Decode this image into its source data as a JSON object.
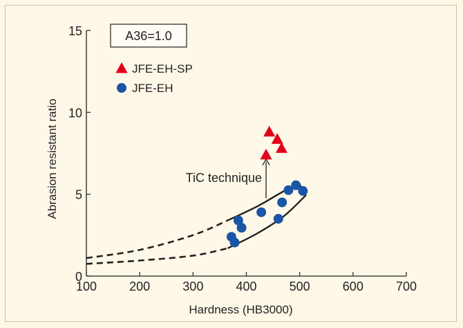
{
  "chart_data": {
    "type": "scatter",
    "xlabel": "Hardness (HB3000)",
    "ylabel": "Abrasion resistant ratio",
    "xlim": [
      100,
      700
    ],
    "ylim": [
      0,
      15
    ],
    "xticks": [
      "100",
      "200",
      "300",
      "400",
      "500",
      "600",
      "700"
    ],
    "yticks": [
      "0",
      "5",
      "10",
      "15"
    ],
    "grid": false,
    "legend_position": "top-left",
    "baseline_label": "A36=1.0",
    "annotation": "TiC technique",
    "colors": {
      "triangle": "#e3001b",
      "circle": "#1a55a6",
      "line": "#231f20",
      "arrow": "#231f20"
    },
    "series": [
      {
        "name": "JFE-EH-SP",
        "marker": "triangle",
        "points": [
          [
            443,
            8.8
          ],
          [
            458,
            8.35
          ],
          [
            466,
            7.8
          ],
          [
            437,
            7.4
          ]
        ]
      },
      {
        "name": "JFE-EH",
        "marker": "circle",
        "points": [
          [
            372,
            2.4
          ],
          [
            378,
            2.05
          ],
          [
            385,
            3.4
          ],
          [
            391,
            2.95
          ],
          [
            428,
            3.9
          ],
          [
            460,
            3.5
          ],
          [
            467,
            4.5
          ],
          [
            479,
            5.25
          ],
          [
            493,
            5.55
          ],
          [
            506,
            5.2
          ]
        ]
      }
    ],
    "band": {
      "upper_dashed": [
        [
          100,
          1.1
        ],
        [
          200,
          1.6
        ],
        [
          300,
          2.5
        ],
        [
          365,
          3.4
        ]
      ],
      "upper_solid": [
        [
          365,
          3.4
        ],
        [
          420,
          4.25
        ],
        [
          460,
          5.0
        ],
        [
          498,
          5.7
        ]
      ],
      "lower_dashed": [
        [
          100,
          0.75
        ],
        [
          200,
          0.95
        ],
        [
          300,
          1.25
        ],
        [
          365,
          1.7
        ]
      ],
      "lower_solid": [
        [
          365,
          1.7
        ],
        [
          420,
          2.6
        ],
        [
          470,
          3.65
        ],
        [
          512,
          4.95
        ]
      ],
      "cap": [
        [
          498,
          5.7
        ],
        [
          512,
          4.95
        ]
      ]
    },
    "arrow": {
      "from": [
        437,
        4.75
      ],
      "to": [
        437,
        7.15
      ]
    }
  }
}
